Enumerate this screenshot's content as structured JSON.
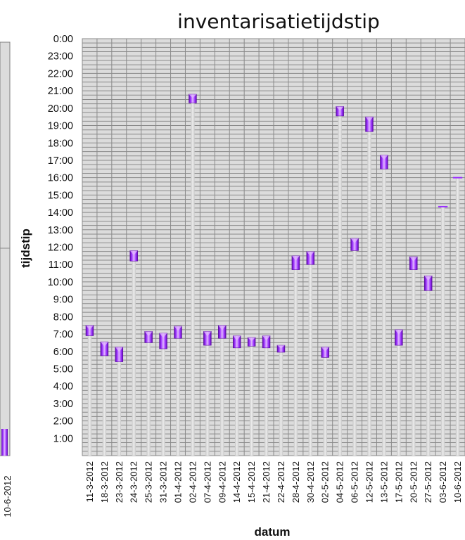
{
  "chart_data": {
    "type": "bar",
    "title": "inventarisatietijdstip",
    "xlabel": "datum",
    "ylabel": "tijdstip",
    "y_ticks": [
      "0:00",
      "23:00",
      "22:00",
      "21:00",
      "20:00",
      "19:00",
      "18:00",
      "17:00",
      "16:00",
      "15:00",
      "14:00",
      "13:00",
      "12:00",
      "11:00",
      "10:00",
      "9:00",
      "8:00",
      "7:00",
      "6:00",
      "5:00",
      "4:00",
      "3:00",
      "2:00",
      "1:00"
    ],
    "ylim": [
      0,
      24
    ],
    "categories": [
      "11-3-2012",
      "18-3-2012",
      "23-3-2012",
      "24-3-2012",
      "25-3-2012",
      "31-3-2012",
      "01-4-2012",
      "02-4-2012",
      "07-4-2012",
      "09-4-2012",
      "14-4-2012",
      "15-4-2012",
      "21-4-2012",
      "22-4-2012",
      "28-4-2012",
      "30-4-2012",
      "02-5-2012",
      "04-5-2012",
      "06-5-2012",
      "12-5-2012",
      "13-5-2012",
      "17-5-2012",
      "20-5-2012",
      "27-5-2012",
      "03-6-2012",
      "10-6-2012"
    ],
    "series": [
      {
        "start": [
          6.9,
          5.75,
          5.4,
          11.2,
          6.5,
          6.15,
          6.75,
          20.3,
          6.35,
          6.75,
          6.2,
          6.3,
          6.2,
          5.95,
          10.7,
          11.0,
          5.65,
          19.55,
          11.8,
          18.65,
          16.5,
          6.35,
          10.7,
          9.5,
          14.33,
          16.0
        ],
        "end": [
          7.5,
          6.55,
          6.25,
          11.8,
          7.15,
          7.05,
          7.45,
          20.8,
          7.15,
          7.5,
          6.9,
          6.8,
          6.9,
          6.35,
          11.5,
          11.75,
          6.25,
          20.1,
          12.5,
          19.5,
          17.3,
          7.25,
          11.45,
          10.35,
          14.33,
          16.0
        ]
      }
    ],
    "grid": true,
    "legend": "none",
    "colors": {
      "bar": "#9b30ff",
      "bar_dark": "#5a0da0",
      "bar_light": "#e2b8ff",
      "stem": "#d3d3d3",
      "plot_bg": "#dcdcdc",
      "grid": "#8a8a8a"
    }
  },
  "left_panel": {
    "date_label": "10-6-2012"
  }
}
